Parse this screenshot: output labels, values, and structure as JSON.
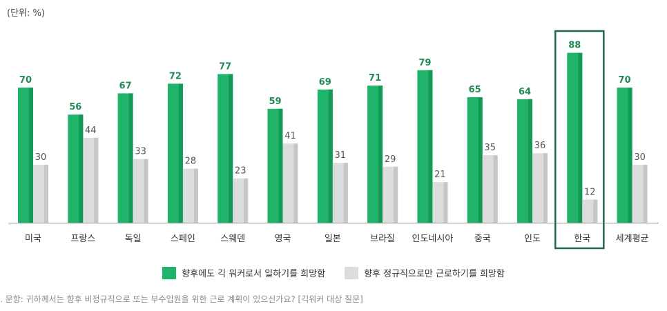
{
  "unit_label": "(단위: %)",
  "legend": {
    "series_a": "향후에도 긱 워커로서 일하기를 희망함",
    "series_b": "향후 정규직으로만 근로하기를 희망함"
  },
  "note": ". 문항: 귀하께서는 향후 비정규직으로 또는 부수입원을 위한 근로 계획이 있으신가요? [긱워커 대상 질문]",
  "colors": {
    "green": "#1fb46a",
    "green_dark": "#149a57",
    "gray": "#dcdcdc",
    "gray_dark": "#c6c6c6",
    "highlight_border": "#1f6b45",
    "label_green": "#1f8a55",
    "label_gray": "#555555"
  },
  "highlight_category": "한국",
  "chart_data": {
    "type": "bar",
    "categories": [
      "미국",
      "프랑스",
      "독일",
      "스페인",
      "스웨덴",
      "영국",
      "일본",
      "브라질",
      "인도네시아",
      "중국",
      "인도",
      "한국",
      "세계평균"
    ],
    "series": [
      {
        "name": "향후에도 긱 워커로서 일하기를 희망함",
        "values": [
          70,
          56,
          67,
          72,
          77,
          59,
          69,
          71,
          79,
          65,
          64,
          88,
          70
        ]
      },
      {
        "name": "향후 정규직으로만 근로하기를 희망함",
        "values": [
          30,
          44,
          33,
          28,
          23,
          41,
          31,
          29,
          21,
          35,
          36,
          12,
          30
        ]
      }
    ],
    "ylim": [
      0,
      100
    ],
    "grid": false,
    "legend_position": "bottom"
  }
}
